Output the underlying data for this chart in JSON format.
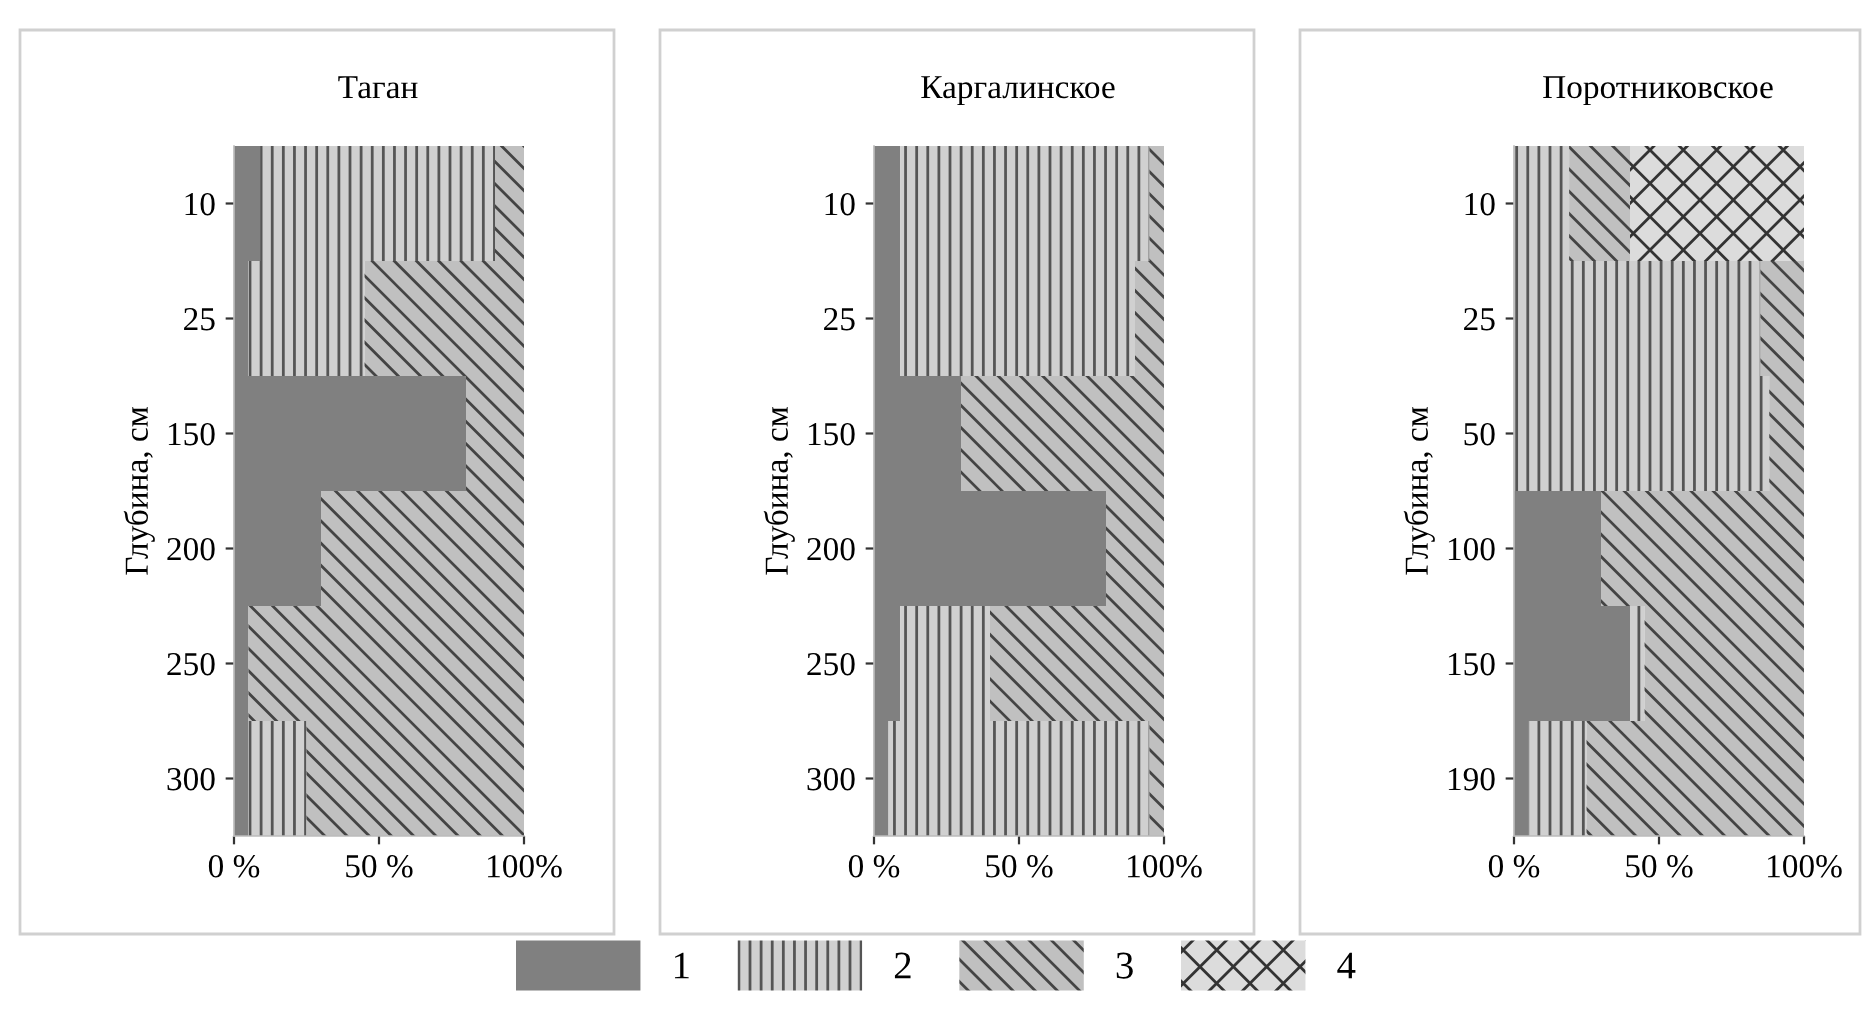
{
  "chart_data": [
    {
      "type": "bar",
      "title": "Таган",
      "ylabel": "Глубина, см",
      "orientation": "horizontal",
      "stacked": true,
      "legend": "bottom",
      "categories": [
        "10",
        "25",
        "150",
        "200",
        "250",
        "300"
      ],
      "series": [
        {
          "name": "1",
          "color": "#808080",
          "values": [
            9,
            5,
            80,
            30,
            5,
            5
          ]
        },
        {
          "name": "2",
          "color": "#d0d0d0",
          "values": [
            81,
            40,
            0,
            0,
            0,
            20
          ]
        },
        {
          "name": "3",
          "color": "#c0c0c0",
          "values": [
            10,
            55,
            20,
            70,
            95,
            75
          ]
        }
      ],
      "xlim": [
        0,
        100
      ],
      "xticks": [
        {
          "value": 0,
          "label": "0 %"
        },
        {
          "value": 50,
          "label": "50 %"
        },
        {
          "value": 100,
          "label": "100%"
        }
      ]
    },
    {
      "type": "bar",
      "title": "Каргалинское",
      "ylabel": "Глубина, см",
      "orientation": "horizontal",
      "stacked": true,
      "legend": "bottom",
      "categories": [
        "10",
        "25",
        "150",
        "200",
        "250",
        "300"
      ],
      "series": [
        {
          "name": "1",
          "color": "#808080",
          "values": [
            9,
            9,
            30,
            80,
            9,
            5
          ]
        },
        {
          "name": "2",
          "color": "#d0d0d0",
          "values": [
            86,
            81,
            0,
            0,
            31,
            90
          ]
        },
        {
          "name": "3",
          "color": "#c0c0c0",
          "values": [
            5,
            10,
            70,
            20,
            60,
            5
          ]
        }
      ],
      "xlim": [
        0,
        100
      ],
      "xticks": [
        {
          "value": 0,
          "label": "0 %"
        },
        {
          "value": 50,
          "label": "50 %"
        },
        {
          "value": 100,
          "label": "100%"
        }
      ]
    },
    {
      "type": "bar",
      "title": "Поротниковское",
      "ylabel": "Глубина, см",
      "orientation": "horizontal",
      "stacked": true,
      "legend": "bottom",
      "categories": [
        "10",
        "25",
        "50",
        "100",
        "150",
        "190"
      ],
      "series": [
        {
          "name": "1",
          "color": "#808080",
          "values": [
            0,
            0,
            0,
            30,
            40,
            5
          ]
        },
        {
          "name": "2",
          "color": "#d0d0d0",
          "values": [
            19,
            85,
            88,
            0,
            5,
            20
          ]
        },
        {
          "name": "3",
          "color": "#c0c0c0",
          "values": [
            21,
            15,
            12,
            70,
            55,
            75
          ]
        },
        {
          "name": "4",
          "color": "#dcdcdc",
          "values": [
            60,
            0,
            0,
            0,
            0,
            0
          ]
        }
      ],
      "xlim": [
        0,
        100
      ],
      "xticks": [
        {
          "value": 0,
          "label": "0 %"
        },
        {
          "value": 50,
          "label": "50 %"
        },
        {
          "value": 100,
          "label": "100%"
        }
      ]
    }
  ]
}
